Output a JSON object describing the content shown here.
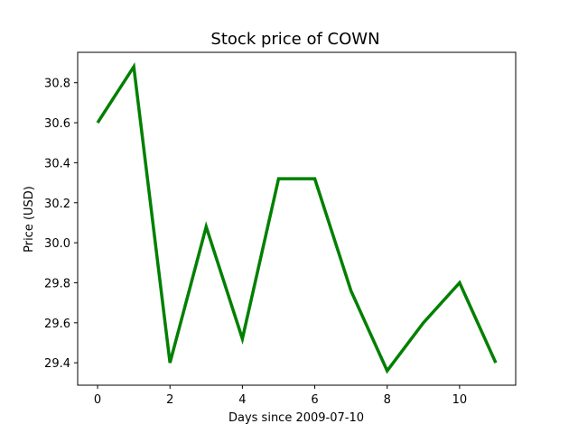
{
  "chart_data": {
    "type": "line",
    "title": "Stock price of COWN",
    "xlabel": "Days since 2009-07-10",
    "ylabel": "Price (USD)",
    "x": [
      0,
      1,
      2,
      3,
      4,
      5,
      6,
      7,
      8,
      9,
      10,
      11
    ],
    "series": [
      {
        "values": [
          30.6,
          30.88,
          29.4,
          30.08,
          29.52,
          30.32,
          30.32,
          29.76,
          29.36,
          29.6,
          29.8,
          29.4
        ],
        "color": "#008000"
      }
    ],
    "xlim": [
      -0.55,
      11.55
    ],
    "ylim": [
      29.288,
      30.952
    ],
    "xticks": [
      "0",
      "2",
      "4",
      "6",
      "8",
      "10"
    ],
    "yticks": [
      "29.4",
      "29.6",
      "29.8",
      "30.0",
      "30.2",
      "30.4",
      "30.6",
      "30.8"
    ],
    "grid": false
  }
}
